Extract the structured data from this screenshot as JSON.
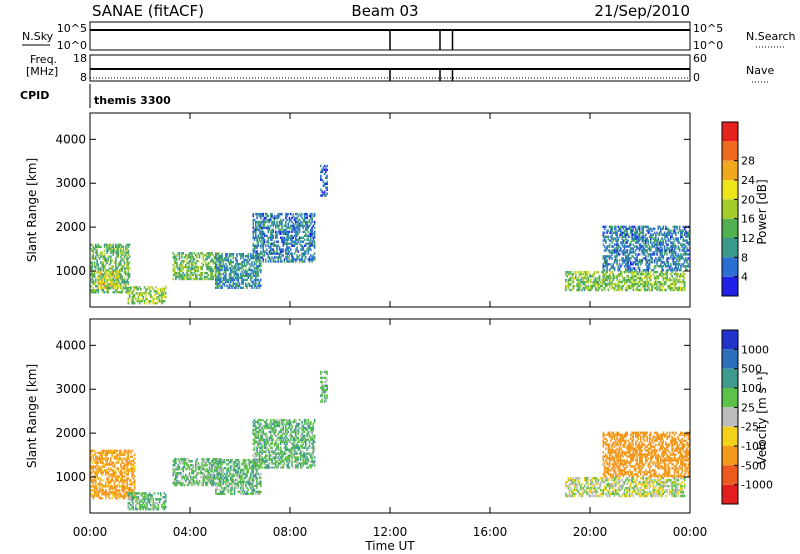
{
  "header": {
    "station": "SANAE (fitACF)",
    "beam": "Beam 03",
    "date": "21/Sep/2010"
  },
  "top_panels": {
    "nsky_label": "N.Sky",
    "nsearch_label": "N.Search",
    "nsky_tick_high": "10^5",
    "nsky_tick_low": "10^0",
    "freq_label_line1": "Freq.",
    "freq_label_line2": "[MHz]",
    "freq_tick_high": "18",
    "freq_tick_low": "8",
    "nave_label": "Nave",
    "nave_tick_high": "60",
    "nave_tick_low": "0",
    "cpid_label": "CPID",
    "cpid_value": "themis 3300",
    "gap_hours": [
      12.0,
      14.0,
      14.5
    ]
  },
  "x_axis": {
    "label": "Time UT",
    "ticks": [
      "00:00",
      "04:00",
      "08:00",
      "12:00",
      "16:00",
      "20:00",
      "00:00"
    ],
    "range_hours": [
      0,
      24
    ]
  },
  "y_axis": {
    "label": "Slant Range [km]",
    "ticks": [
      "1000",
      "2000",
      "3000",
      "4000"
    ],
    "range_km": [
      180,
      4600
    ]
  },
  "colorbars": {
    "power": {
      "label": "Power [dB]",
      "ticks": [
        "4",
        "8",
        "12",
        "16",
        "20",
        "24",
        "28"
      ],
      "colors": [
        "#1f1fe6",
        "#2c6fd2",
        "#3a9a8c",
        "#52b050",
        "#a4cc2a",
        "#eee51a",
        "#f0a81e",
        "#ee6a1e",
        "#e6221e"
      ]
    },
    "velocity": {
      "label": "Velocity [m s⁻¹]",
      "ticks": [
        "1000",
        "500",
        "100",
        "25",
        "-25",
        "-100",
        "-500",
        "-1000"
      ],
      "colors": [
        "#2233cc",
        "#2d6eb8",
        "#3f9a8e",
        "#5cc24a",
        "#bcbcbc",
        "#f4d21a",
        "#f39a1e",
        "#ec5a1e",
        "#e41e1e"
      ]
    }
  },
  "chart_data": [
    {
      "type": "heatmap",
      "panel": "power",
      "x_unit": "hours UT",
      "y_unit": "km",
      "regions": [
        {
          "t": [
            0.0,
            1.6
          ],
          "r": [
            500,
            1600
          ],
          "value": 14
        },
        {
          "t": [
            0.3,
            1.2
          ],
          "r": [
            600,
            1000
          ],
          "value": 22
        },
        {
          "t": [
            1.5,
            3.0
          ],
          "r": [
            250,
            650
          ],
          "value": 17
        },
        {
          "t": [
            3.3,
            5.2
          ],
          "r": [
            800,
            1400
          ],
          "value": 15
        },
        {
          "t": [
            5.0,
            6.8
          ],
          "r": [
            600,
            1400
          ],
          "value": 9
        },
        {
          "t": [
            6.5,
            9.0
          ],
          "r": [
            1200,
            2300
          ],
          "value": 8
        },
        {
          "t": [
            9.2,
            9.5
          ],
          "r": [
            2700,
            3400
          ],
          "value": 6
        },
        {
          "t": [
            19.0,
            23.8
          ],
          "r": [
            550,
            1000
          ],
          "value": 16
        },
        {
          "t": [
            20.5,
            24.0
          ],
          "r": [
            1000,
            2000
          ],
          "value": 8
        }
      ]
    },
    {
      "type": "heatmap",
      "panel": "velocity",
      "x_unit": "hours UT",
      "y_unit": "km",
      "regions": [
        {
          "t": [
            0.0,
            1.8
          ],
          "r": [
            500,
            1600
          ],
          "value": -150
        },
        {
          "t": [
            1.5,
            3.0
          ],
          "r": [
            250,
            650
          ],
          "value": 80
        },
        {
          "t": [
            3.3,
            5.2
          ],
          "r": [
            800,
            1400
          ],
          "value": 60
        },
        {
          "t": [
            5.0,
            6.8
          ],
          "r": [
            600,
            1400
          ],
          "value": 70
        },
        {
          "t": [
            6.5,
            9.0
          ],
          "r": [
            1200,
            2300
          ],
          "value": 80
        },
        {
          "t": [
            9.2,
            9.5
          ],
          "r": [
            2700,
            3400
          ],
          "value": 60
        },
        {
          "t": [
            19.0,
            23.8
          ],
          "r": [
            550,
            1000
          ],
          "value": 0
        },
        {
          "t": [
            20.5,
            24.0
          ],
          "r": [
            1000,
            2000
          ],
          "value": -400
        }
      ]
    }
  ]
}
